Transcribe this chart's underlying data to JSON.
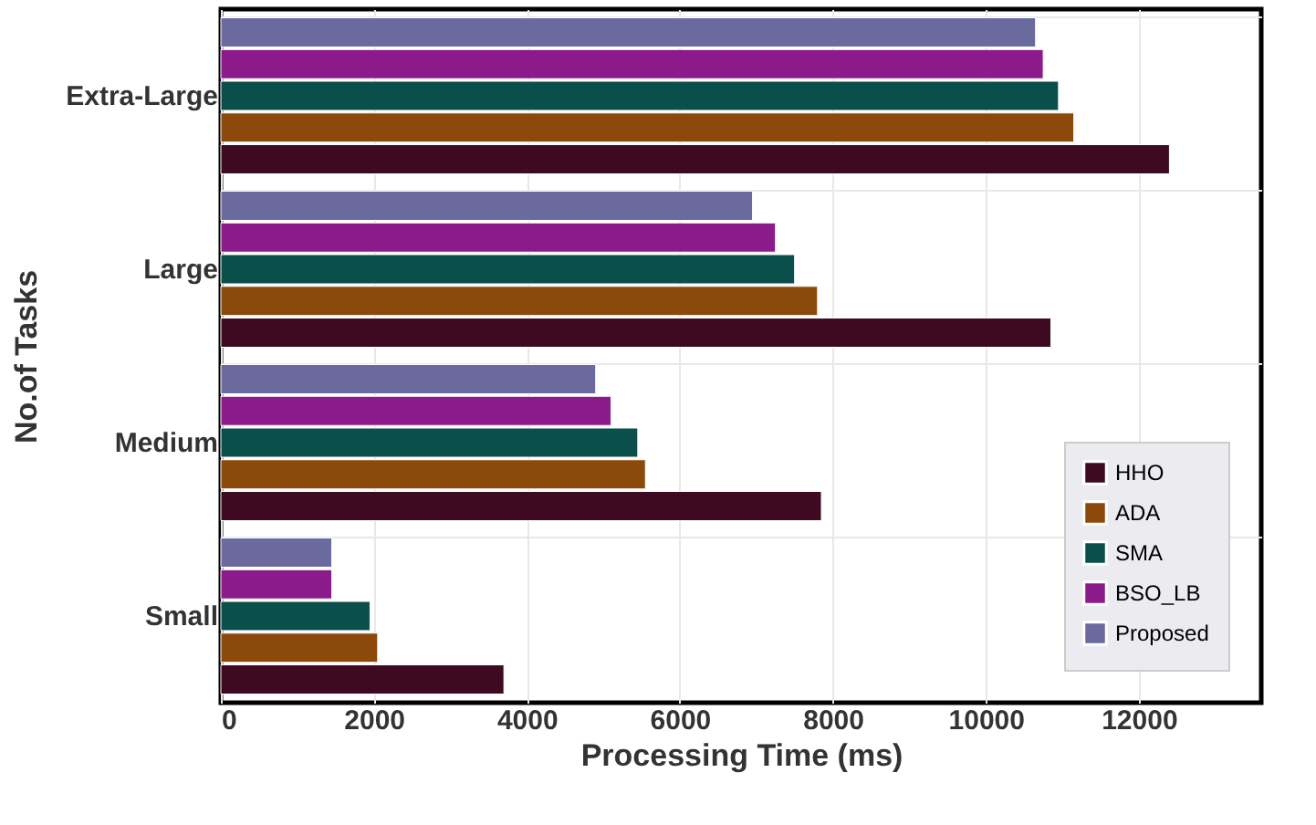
{
  "chart_data": {
    "type": "bar",
    "orientation": "horizontal",
    "xlabel": "Processing Time (ms)",
    "ylabel": "No.of Tasks",
    "categories": [
      "Extra-Large",
      "Large",
      "Medium",
      "Small"
    ],
    "series": [
      {
        "name": "HHO",
        "color": "#3d0a22",
        "values": [
          12400,
          10850,
          7850,
          3700
        ]
      },
      {
        "name": "ADA",
        "color": "#8b4a0a",
        "values": [
          11150,
          7800,
          5550,
          2050
        ]
      },
      {
        "name": "SMA",
        "color": "#0b4f4a",
        "values": [
          10950,
          7500,
          5450,
          1950
        ]
      },
      {
        "name": "BSO_LB",
        "color": "#8b1a8b",
        "values": [
          10750,
          7250,
          5100,
          1450
        ]
      },
      {
        "name": "Proposed",
        "color": "#6a6a9e",
        "values": [
          10650,
          6950,
          4900,
          1450
        ]
      }
    ],
    "xlim": [
      0,
      13600
    ],
    "xticks": [
      0,
      2000,
      4000,
      6000,
      8000,
      10000,
      12000
    ],
    "grid": true,
    "legend": "bottom right"
  }
}
